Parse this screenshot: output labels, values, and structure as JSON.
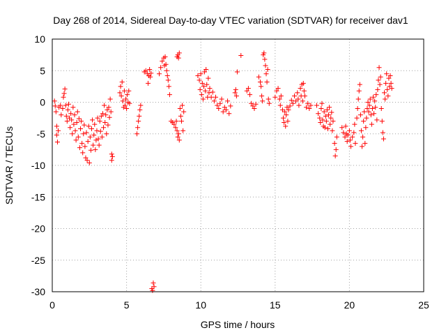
{
  "chart_data": {
    "type": "scatter",
    "title": "Day 268 of 2014, Sidereal Day-to-day VTEC variation (SDTVAR) for receiver dav1",
    "xlabel": "GPS time / hours",
    "ylabel": "SDTVAR / TECUs",
    "xlim": [
      0,
      25
    ],
    "ylim": [
      -30,
      10
    ],
    "xticks": [
      0,
      5,
      10,
      15,
      20,
      25
    ],
    "xtick_labels": [
      "0",
      "5",
      "10",
      "15",
      "20",
      "25"
    ],
    "yticks": [
      -30,
      -25,
      -20,
      -15,
      -10,
      -5,
      0,
      5,
      10
    ],
    "ytick_labels": [
      "-30",
      "-25",
      "-20",
      "-15",
      "-10",
      "-5",
      "0",
      "5",
      "10"
    ],
    "grid": true,
    "marker": "+",
    "color": "#ff0000",
    "series": [
      {
        "name": "SDTVAR",
        "points": [
          [
            0.15,
            0.2
          ],
          [
            0.2,
            -0.6
          ],
          [
            0.25,
            -1.5
          ],
          [
            0.3,
            -3.8
          ],
          [
            0.3,
            -5.2
          ],
          [
            0.35,
            -6.3
          ],
          [
            0.4,
            -4.5
          ],
          [
            0.45,
            -0.8
          ],
          [
            0.55,
            -0.5
          ],
          [
            0.6,
            -2.0
          ],
          [
            0.7,
            -1.0
          ],
          [
            0.75,
            0.8
          ],
          [
            0.8,
            1.4
          ],
          [
            0.85,
            2.1
          ],
          [
            0.9,
            -0.5
          ],
          [
            0.95,
            -2.2
          ],
          [
            1.0,
            -3.0
          ],
          [
            1.05,
            -1.2
          ],
          [
            1.1,
            -0.3
          ],
          [
            1.15,
            -2.5
          ],
          [
            1.2,
            -4.0
          ],
          [
            1.25,
            -1.8
          ],
          [
            1.3,
            -2.8
          ],
          [
            1.35,
            -5.0
          ],
          [
            1.4,
            -0.8
          ],
          [
            1.45,
            -3.5
          ],
          [
            1.5,
            -2.0
          ],
          [
            1.55,
            -4.5
          ],
          [
            1.6,
            -6.0
          ],
          [
            1.65,
            -3.2
          ],
          [
            1.7,
            -1.5
          ],
          [
            1.75,
            -5.5
          ],
          [
            1.8,
            -2.6
          ],
          [
            1.85,
            -7.2
          ],
          [
            1.9,
            -4.2
          ],
          [
            1.95,
            -3.0
          ],
          [
            2.0,
            -6.5
          ],
          [
            2.05,
            -8.0
          ],
          [
            2.1,
            -5.0
          ],
          [
            2.15,
            -3.6
          ],
          [
            2.2,
            -7.0
          ],
          [
            2.25,
            -8.8
          ],
          [
            2.3,
            -4.8
          ],
          [
            2.35,
            -9.2
          ],
          [
            2.4,
            -6.2
          ],
          [
            2.45,
            -3.8
          ],
          [
            2.5,
            -9.6
          ],
          [
            2.55,
            -5.5
          ],
          [
            2.6,
            -7.6
          ],
          [
            2.65,
            -4.2
          ],
          [
            2.7,
            -2.8
          ],
          [
            2.75,
            -6.8
          ],
          [
            2.8,
            -5.2
          ],
          [
            2.85,
            -3.5
          ],
          [
            2.9,
            -7.5
          ],
          [
            2.95,
            -6.0
          ],
          [
            3.0,
            -4.5
          ],
          [
            3.05,
            -2.5
          ],
          [
            3.1,
            -5.8
          ],
          [
            3.15,
            -6.8
          ],
          [
            3.2,
            -3.0
          ],
          [
            3.25,
            -4.6
          ],
          [
            3.3,
            -2.2
          ],
          [
            3.35,
            -5.5
          ],
          [
            3.4,
            -1.8
          ],
          [
            3.45,
            -4.0
          ],
          [
            3.5,
            -0.5
          ],
          [
            3.55,
            -3.2
          ],
          [
            3.6,
            -2.0
          ],
          [
            3.65,
            -5.0
          ],
          [
            3.7,
            -1.2
          ],
          [
            3.75,
            -3.6
          ],
          [
            3.8,
            -0.8
          ],
          [
            3.85,
            -2.4
          ],
          [
            3.9,
            0.5
          ],
          [
            3.95,
            -1.5
          ],
          [
            4.0,
            -8.2
          ],
          [
            4.0,
            -9.2
          ],
          [
            4.05,
            -8.6
          ],
          [
            4.55,
            1.5
          ],
          [
            4.6,
            2.5
          ],
          [
            4.65,
            1.0
          ],
          [
            4.7,
            3.2
          ],
          [
            4.75,
            0.2
          ],
          [
            4.8,
            -0.8
          ],
          [
            4.85,
            1.8
          ],
          [
            4.9,
            -0.5
          ],
          [
            4.95,
            0.5
          ],
          [
            5.0,
            -1.0
          ],
          [
            5.05,
            1.2
          ],
          [
            5.1,
            0.0
          ],
          [
            5.15,
            1.8
          ],
          [
            5.2,
            -0.2
          ],
          [
            5.7,
            -5.0
          ],
          [
            5.75,
            -4.0
          ],
          [
            5.8,
            -3.0
          ],
          [
            5.85,
            -2.2
          ],
          [
            5.9,
            -1.2
          ],
          [
            5.95,
            -0.5
          ],
          [
            6.2,
            4.8
          ],
          [
            6.3,
            5.0
          ],
          [
            6.4,
            4.5
          ],
          [
            6.45,
            3.0
          ],
          [
            6.5,
            4.2
          ],
          [
            6.55,
            5.2
          ],
          [
            6.6,
            4.0
          ],
          [
            6.65,
            4.6
          ],
          [
            6.7,
            -29.5
          ],
          [
            6.75,
            -29.8
          ],
          [
            6.8,
            -28.6
          ],
          [
            6.85,
            -29.2
          ],
          [
            7.2,
            4.5
          ],
          [
            7.3,
            5.5
          ],
          [
            7.4,
            6.5
          ],
          [
            7.5,
            7.0
          ],
          [
            7.55,
            5.8
          ],
          [
            7.6,
            7.2
          ],
          [
            7.65,
            6.0
          ],
          [
            7.7,
            5.0
          ],
          [
            7.75,
            4.2
          ],
          [
            7.8,
            3.5
          ],
          [
            7.85,
            2.5
          ],
          [
            7.9,
            1.2
          ],
          [
            8.0,
            -3.0
          ],
          [
            8.1,
            -3.2
          ],
          [
            8.2,
            -3.5
          ],
          [
            8.3,
            -4.0
          ],
          [
            8.35,
            -3.0
          ],
          [
            8.4,
            -4.5
          ],
          [
            8.45,
            -5.5
          ],
          [
            8.5,
            -5.0
          ],
          [
            8.55,
            -6.0
          ],
          [
            8.4,
            7.2
          ],
          [
            8.45,
            7.5
          ],
          [
            8.5,
            7.0
          ],
          [
            8.55,
            7.8
          ],
          [
            8.6,
            -1.0
          ],
          [
            8.65,
            -2.2
          ],
          [
            8.7,
            -3.0
          ],
          [
            8.75,
            -0.5
          ],
          [
            8.8,
            -4.5
          ],
          [
            8.85,
            -1.5
          ],
          [
            9.8,
            4.2
          ],
          [
            9.9,
            3.5
          ],
          [
            9.95,
            2.0
          ],
          [
            10.0,
            4.5
          ],
          [
            10.05,
            1.2
          ],
          [
            10.1,
            3.0
          ],
          [
            10.15,
            0.5
          ],
          [
            10.2,
            2.5
          ],
          [
            10.25,
            4.8
          ],
          [
            10.3,
            1.8
          ],
          [
            10.35,
            5.2
          ],
          [
            10.4,
            2.8
          ],
          [
            10.45,
            0.8
          ],
          [
            10.5,
            3.8
          ],
          [
            10.55,
            1.5
          ],
          [
            10.6,
            2.2
          ],
          [
            10.7,
            0.8
          ],
          [
            10.8,
            1.6
          ],
          [
            10.9,
            0.2
          ],
          [
            11.0,
            0.8
          ],
          [
            11.1,
            -0.5
          ],
          [
            11.2,
            -1.0
          ],
          [
            11.3,
            -0.2
          ],
          [
            11.4,
            0.5
          ],
          [
            11.5,
            -1.5
          ],
          [
            11.6,
            -0.8
          ],
          [
            11.7,
            -1.2
          ],
          [
            11.8,
            0.2
          ],
          [
            11.9,
            -1.8
          ],
          [
            12.0,
            -0.6
          ],
          [
            12.3,
            1.5
          ],
          [
            12.35,
            2.0
          ],
          [
            12.4,
            1.0
          ],
          [
            12.45,
            4.8
          ],
          [
            12.7,
            7.4
          ],
          [
            13.1,
            1.8
          ],
          [
            13.2,
            2.2
          ],
          [
            13.3,
            1.2
          ],
          [
            13.4,
            -0.2
          ],
          [
            13.5,
            -0.6
          ],
          [
            13.6,
            -1.0
          ],
          [
            13.7,
            -0.3
          ],
          [
            13.9,
            4.0
          ],
          [
            14.0,
            3.2
          ],
          [
            14.05,
            2.5
          ],
          [
            14.1,
            1.0
          ],
          [
            14.15,
            0.2
          ],
          [
            14.2,
            7.5
          ],
          [
            14.25,
            7.8
          ],
          [
            14.3,
            6.8
          ],
          [
            14.35,
            5.8
          ],
          [
            14.4,
            4.5
          ],
          [
            14.45,
            3.2
          ],
          [
            14.5,
            5.2
          ],
          [
            14.55,
            0.5
          ],
          [
            14.6,
            -0.2
          ],
          [
            15.0,
            0.8
          ],
          [
            15.1,
            1.8
          ],
          [
            15.2,
            2.2
          ],
          [
            15.3,
            0.5
          ],
          [
            15.35,
            -0.5
          ],
          [
            15.4,
            1.0
          ],
          [
            15.5,
            -1.2
          ],
          [
            15.55,
            -2.5
          ],
          [
            15.6,
            -3.2
          ],
          [
            15.65,
            -1.5
          ],
          [
            15.7,
            -3.8
          ],
          [
            15.75,
            -2.0
          ],
          [
            15.8,
            -0.8
          ],
          [
            15.85,
            -3.0
          ],
          [
            15.9,
            -1.2
          ],
          [
            16.0,
            -0.6
          ],
          [
            16.1,
            0.3
          ],
          [
            16.2,
            -0.2
          ],
          [
            16.3,
            1.0
          ],
          [
            16.4,
            0.2
          ],
          [
            16.5,
            1.5
          ],
          [
            16.55,
            0.5
          ],
          [
            16.6,
            -0.5
          ],
          [
            16.7,
            2.2
          ],
          [
            16.75,
            1.0
          ],
          [
            16.8,
            2.8
          ],
          [
            16.85,
            0.2
          ],
          [
            16.9,
            3.0
          ],
          [
            16.95,
            1.8
          ],
          [
            17.0,
            1.0
          ],
          [
            17.1,
            -0.8
          ],
          [
            17.2,
            -0.2
          ],
          [
            17.3,
            -1.0
          ],
          [
            17.4,
            -0.5
          ],
          [
            17.8,
            -0.5
          ],
          [
            17.9,
            -1.8
          ],
          [
            18.0,
            -2.5
          ],
          [
            18.05,
            -3.2
          ],
          [
            18.1,
            -1.0
          ],
          [
            18.15,
            -0.2
          ],
          [
            18.2,
            -2.8
          ],
          [
            18.25,
            -3.8
          ],
          [
            18.3,
            -1.5
          ],
          [
            18.35,
            -4.0
          ],
          [
            18.4,
            -2.2
          ],
          [
            18.45,
            -3.0
          ],
          [
            18.5,
            -1.2
          ],
          [
            18.55,
            -4.2
          ],
          [
            18.6,
            -2.0
          ],
          [
            18.65,
            -0.8
          ],
          [
            18.7,
            -3.5
          ],
          [
            18.75,
            -2.5
          ],
          [
            18.8,
            -1.6
          ],
          [
            18.85,
            -4.5
          ],
          [
            18.9,
            -3.0
          ],
          [
            19.0,
            -6.5
          ],
          [
            19.05,
            -8.5
          ],
          [
            19.1,
            -7.5
          ],
          [
            19.15,
            -5.5
          ],
          [
            19.5,
            -4.0
          ],
          [
            19.6,
            -4.8
          ],
          [
            19.7,
            -5.5
          ],
          [
            19.75,
            -3.8
          ],
          [
            19.8,
            -5.0
          ],
          [
            19.85,
            -6.2
          ],
          [
            19.9,
            -5.2
          ],
          [
            20.0,
            -4.5
          ],
          [
            20.05,
            -6.0
          ],
          [
            20.1,
            -7.0
          ],
          [
            20.2,
            -5.5
          ],
          [
            20.3,
            -4.8
          ],
          [
            20.35,
            -3.5
          ],
          [
            20.4,
            -6.5
          ],
          [
            20.5,
            -2.5
          ],
          [
            20.55,
            -1.0
          ],
          [
            20.6,
            0.5
          ],
          [
            20.65,
            1.8
          ],
          [
            20.7,
            2.8
          ],
          [
            20.75,
            -2.0
          ],
          [
            20.8,
            -4.5
          ],
          [
            20.85,
            -7.0
          ],
          [
            20.9,
            -5.5
          ],
          [
            20.95,
            -3.0
          ],
          [
            21.0,
            -1.5
          ],
          [
            21.05,
            -6.5
          ],
          [
            21.1,
            -4.0
          ],
          [
            21.15,
            -2.5
          ],
          [
            21.2,
            -1.0
          ],
          [
            21.25,
            0.0
          ],
          [
            21.3,
            -1.5
          ],
          [
            21.35,
            -0.5
          ],
          [
            21.4,
            0.5
          ],
          [
            21.45,
            -2.0
          ],
          [
            21.5,
            -3.5
          ],
          [
            21.55,
            -1.0
          ],
          [
            21.6,
            0.8
          ],
          [
            21.65,
            -1.8
          ],
          [
            21.7,
            0.2
          ],
          [
            21.75,
            -0.8
          ],
          [
            21.8,
            1.2
          ],
          [
            21.85,
            -2.8
          ],
          [
            21.9,
            2.0
          ],
          [
            21.95,
            3.5
          ],
          [
            22.0,
            5.5
          ],
          [
            22.05,
            2.8
          ],
          [
            22.1,
            4.0
          ],
          [
            22.15,
            -1.0
          ],
          [
            22.2,
            -3.0
          ],
          [
            22.25,
            -4.8
          ],
          [
            22.3,
            -5.8
          ],
          [
            22.35,
            1.5
          ],
          [
            22.4,
            0.5
          ],
          [
            22.45,
            3.0
          ],
          [
            22.5,
            4.5
          ],
          [
            22.55,
            2.0
          ],
          [
            22.6,
            1.0
          ],
          [
            22.65,
            3.8
          ],
          [
            22.7,
            2.5
          ],
          [
            22.75,
            4.2
          ],
          [
            22.8,
            3.0
          ],
          [
            22.85,
            2.2
          ]
        ]
      }
    ]
  }
}
